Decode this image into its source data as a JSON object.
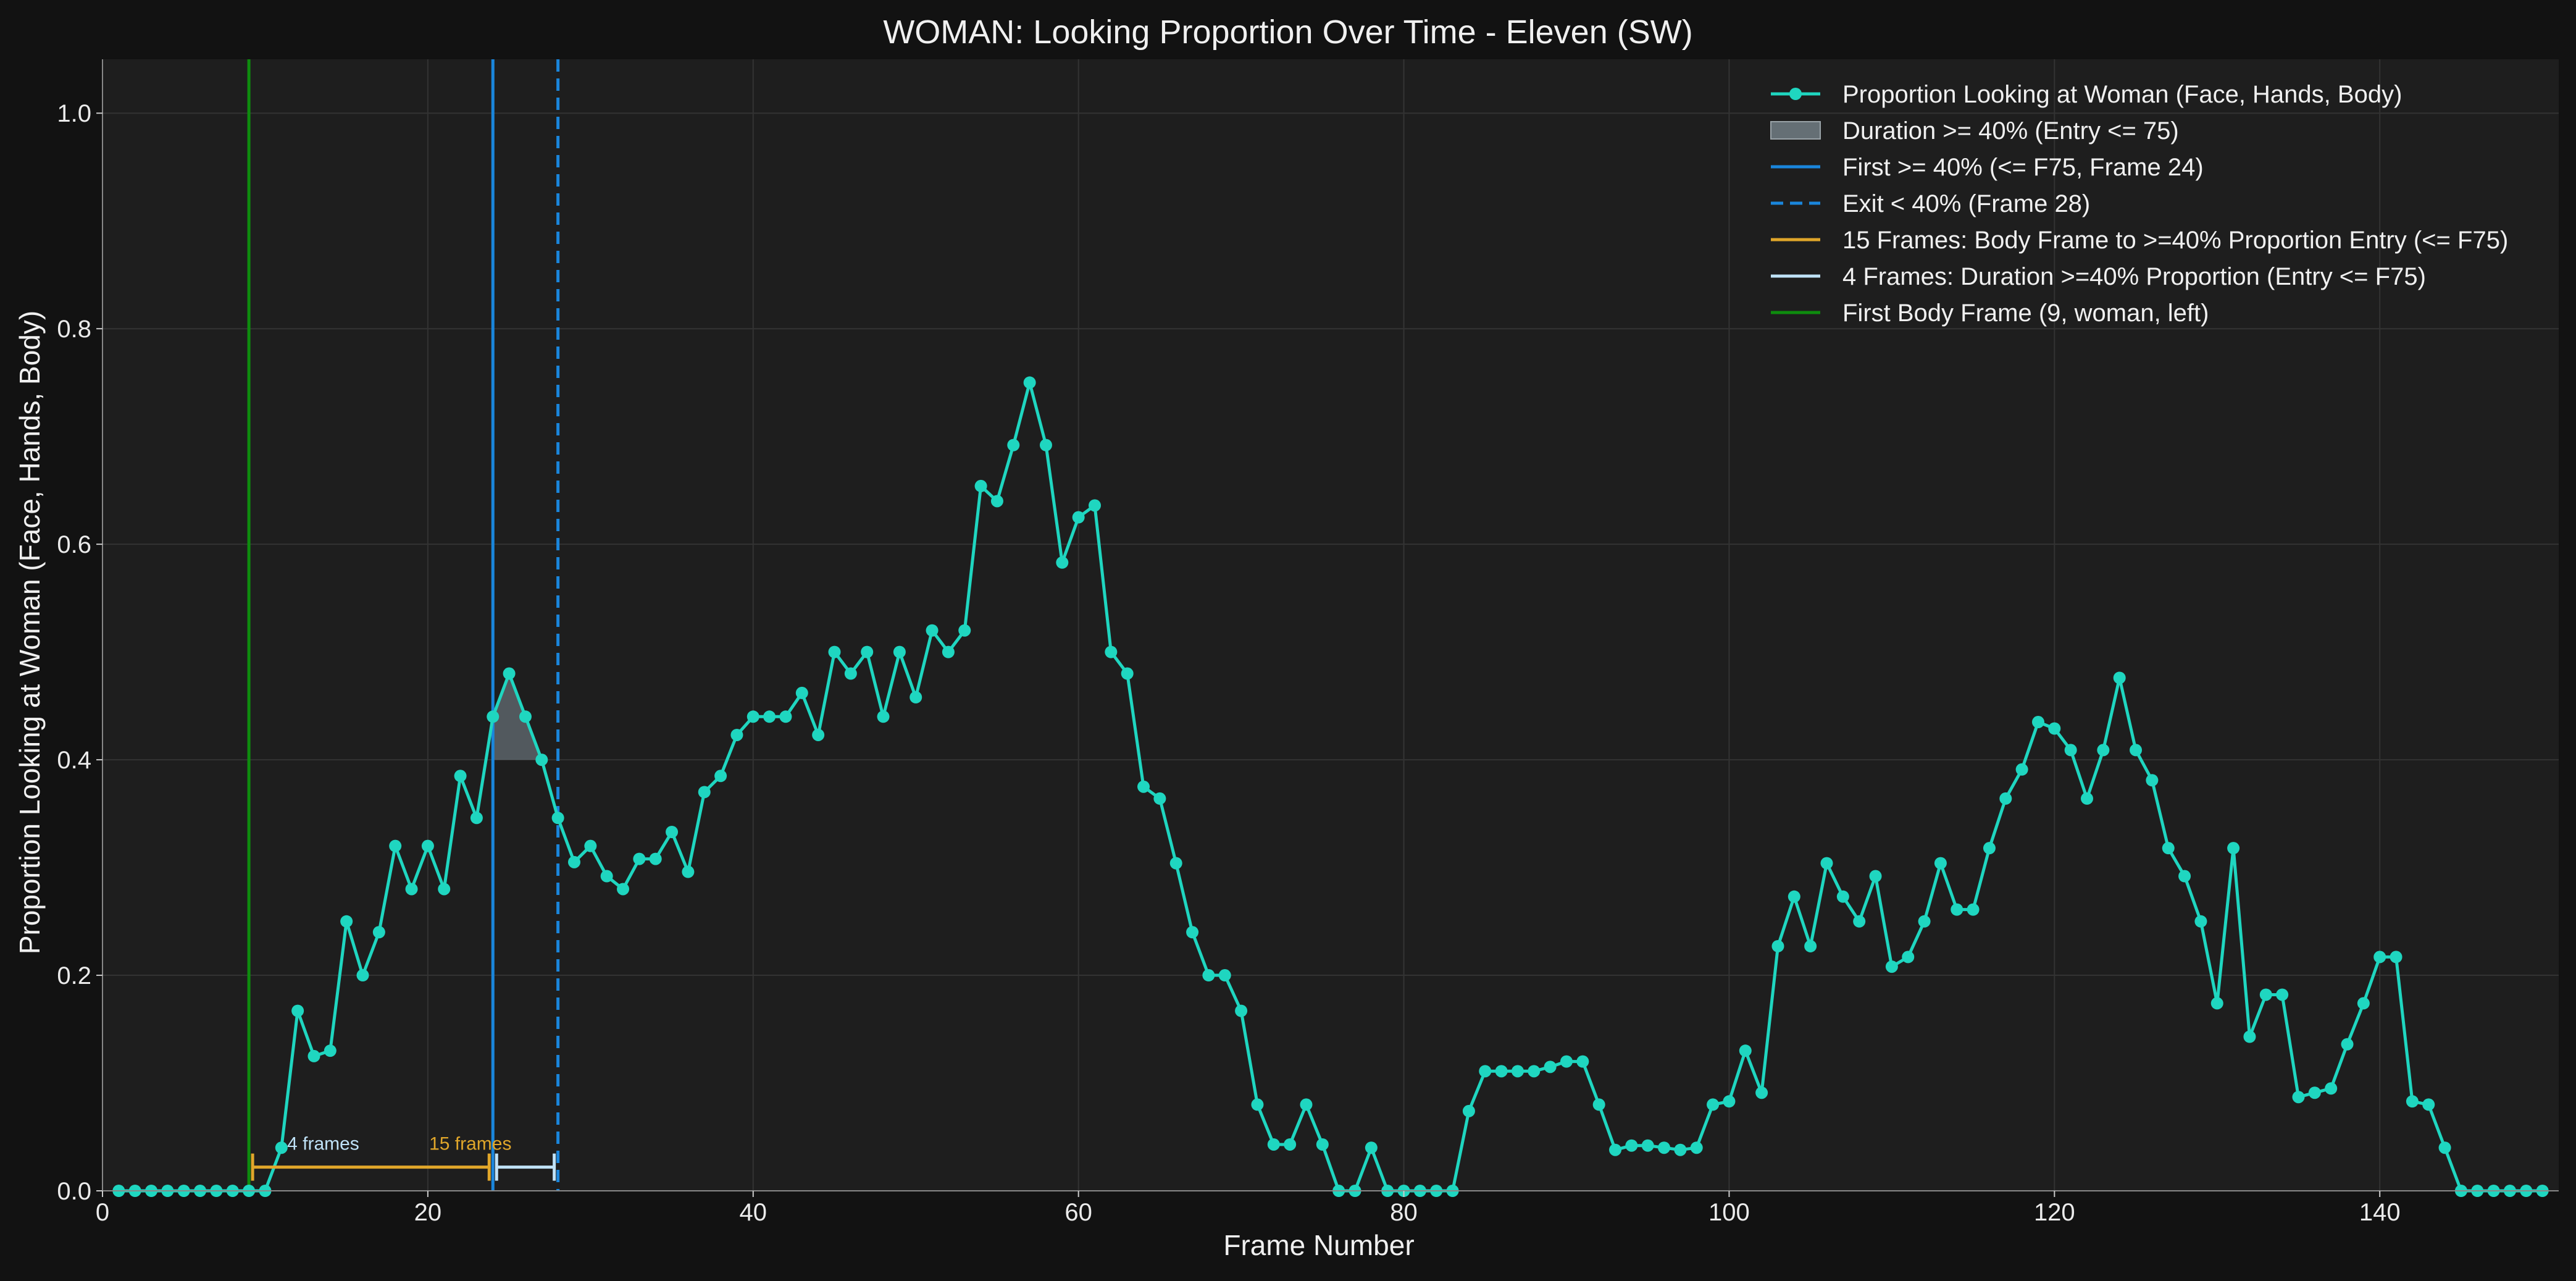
{
  "chart_data": {
    "type": "line",
    "title": "WOMAN: Looking Proportion Over Time - Eleven (SW)",
    "xlabel": "Frame Number",
    "ylabel": "Proportion Looking at Woman (Face, Hands, Body)",
    "xlim": [
      0,
      151
    ],
    "ylim": [
      0,
      1.05
    ],
    "xticks": [
      0,
      20,
      40,
      60,
      80,
      100,
      120,
      140
    ],
    "yticks": [
      0.0,
      0.2,
      0.4,
      0.6,
      0.8,
      1.0
    ],
    "grid": true,
    "legend_position": "top-right",
    "colors": {
      "background": "#121212",
      "plot_background": "#1e1e1e",
      "series": "#1fd6c0",
      "first_threshold": "#1a86dc",
      "exit": "#1a86dc",
      "body_frame": "#0e8c0e",
      "bracket_body": "#e0a62a",
      "bracket_duration": "#bfe2f7",
      "fill": "#7e8b93"
    },
    "series": [
      {
        "name": "Proportion Looking at Woman (Face, Hands, Body)",
        "x": [
          1,
          2,
          3,
          4,
          5,
          6,
          7,
          8,
          9,
          10,
          11,
          12,
          13,
          14,
          15,
          16,
          17,
          18,
          19,
          20,
          21,
          22,
          23,
          24,
          25,
          26,
          27,
          28,
          29,
          30,
          31,
          32,
          33,
          34,
          35,
          36,
          37,
          38,
          39,
          40,
          41,
          42,
          43,
          44,
          45,
          46,
          47,
          48,
          49,
          50,
          51,
          52,
          53,
          54,
          55,
          56,
          57,
          58,
          59,
          60,
          61,
          62,
          63,
          64,
          65,
          66,
          67,
          68,
          69,
          70,
          71,
          72,
          73,
          74,
          75,
          76,
          77,
          78,
          79,
          80,
          81,
          82,
          83,
          84,
          85,
          86,
          87,
          88,
          89,
          90,
          91,
          92,
          93,
          94,
          95,
          96,
          97,
          98,
          99,
          100,
          101,
          102,
          103,
          104,
          105,
          106,
          107,
          108,
          109,
          110,
          111,
          112,
          113,
          114,
          115,
          116,
          117,
          118,
          119,
          120,
          121,
          122,
          123,
          124,
          125,
          126,
          127,
          128,
          129,
          130,
          131,
          132,
          133,
          134,
          135,
          136,
          137,
          138,
          139,
          140,
          141,
          142,
          143,
          144,
          145,
          146,
          147,
          148,
          149,
          150
        ],
        "y": [
          0,
          0,
          0,
          0,
          0,
          0,
          0,
          0,
          0,
          0,
          0.04,
          0.167,
          0.125,
          0.13,
          0.25,
          0.2,
          0.24,
          0.32,
          0.28,
          0.32,
          0.28,
          0.385,
          0.346,
          0.44,
          0.48,
          0.44,
          0.4,
          0.346,
          0.305,
          0.32,
          0.292,
          0.28,
          0.308,
          0.308,
          0.333,
          0.296,
          0.37,
          0.385,
          0.423,
          0.44,
          0.44,
          0.44,
          0.462,
          0.423,
          0.5,
          0.48,
          0.5,
          0.44,
          0.5,
          0.458,
          0.52,
          0.5,
          0.52,
          0.654,
          0.64,
          0.692,
          0.75,
          0.692,
          0.583,
          0.625,
          0.636,
          0.5,
          0.48,
          0.375,
          0.364,
          0.304,
          0.24,
          0.2,
          0.2,
          0.167,
          0.08,
          0.043,
          0.043,
          0.08,
          0.043,
          0,
          0,
          0.04,
          0,
          0,
          0,
          0,
          0,
          0.074,
          0.111,
          0.111,
          0.111,
          0.111,
          0.115,
          0.12,
          0.12,
          0.08,
          0.038,
          0.042,
          0.042,
          0.04,
          0.038,
          0.04,
          0.08,
          0.083,
          0.13,
          0.091,
          0.227,
          0.273,
          0.227,
          0.304,
          0.273,
          0.25,
          0.292,
          0.208,
          0.217,
          0.25,
          0.304,
          0.261,
          0.261,
          0.318,
          0.364,
          0.391,
          0.435,
          0.429,
          0.409,
          0.364,
          0.409,
          0.476,
          0.409,
          0.381,
          0.318,
          0.292,
          0.25,
          0.174,
          0.318,
          0.143,
          0.182,
          0.182,
          0.087,
          0.091,
          0.095,
          0.136,
          0.174,
          0.217,
          0.217,
          0.083,
          0.08,
          0.04,
          0,
          0,
          0,
          0,
          0,
          0
        ]
      }
    ],
    "fill_region": {
      "x_start": 24,
      "x_end": 27,
      "threshold": 0.4
    },
    "vlines": {
      "first_threshold_frame": 24,
      "exit_frame": 28,
      "body_frame": 9
    },
    "brackets": [
      {
        "x_start": 9,
        "x_end": 24,
        "y": 0.022,
        "label": "15 frames",
        "color_key": "bracket_body"
      },
      {
        "x_start": 24,
        "x_end": 28,
        "y": 0.022,
        "label": "4 frames",
        "color_key": "bracket_duration"
      }
    ],
    "legend": [
      {
        "label": "Proportion Looking at Woman (Face, Hands, Body)",
        "kind": "line-marker",
        "color_key": "series"
      },
      {
        "label": "Duration >= 40% (Entry <= 75)",
        "kind": "patch",
        "color_key": "fill"
      },
      {
        "label": "First >= 40% (<= F75, Frame 24)",
        "kind": "line",
        "color_key": "first_threshold"
      },
      {
        "label": "Exit < 40% (Frame 28)",
        "kind": "dashed",
        "color_key": "exit"
      },
      {
        "label": "15 Frames: Body Frame to >=40% Proportion Entry (<= F75)",
        "kind": "line",
        "color_key": "bracket_body"
      },
      {
        "label": "4 Frames: Duration >=40% Proportion (Entry <= F75)",
        "kind": "line",
        "color_key": "bracket_duration"
      },
      {
        "label": "First Body Frame (9, woman, left)",
        "kind": "line",
        "color_key": "body_frame"
      }
    ]
  }
}
